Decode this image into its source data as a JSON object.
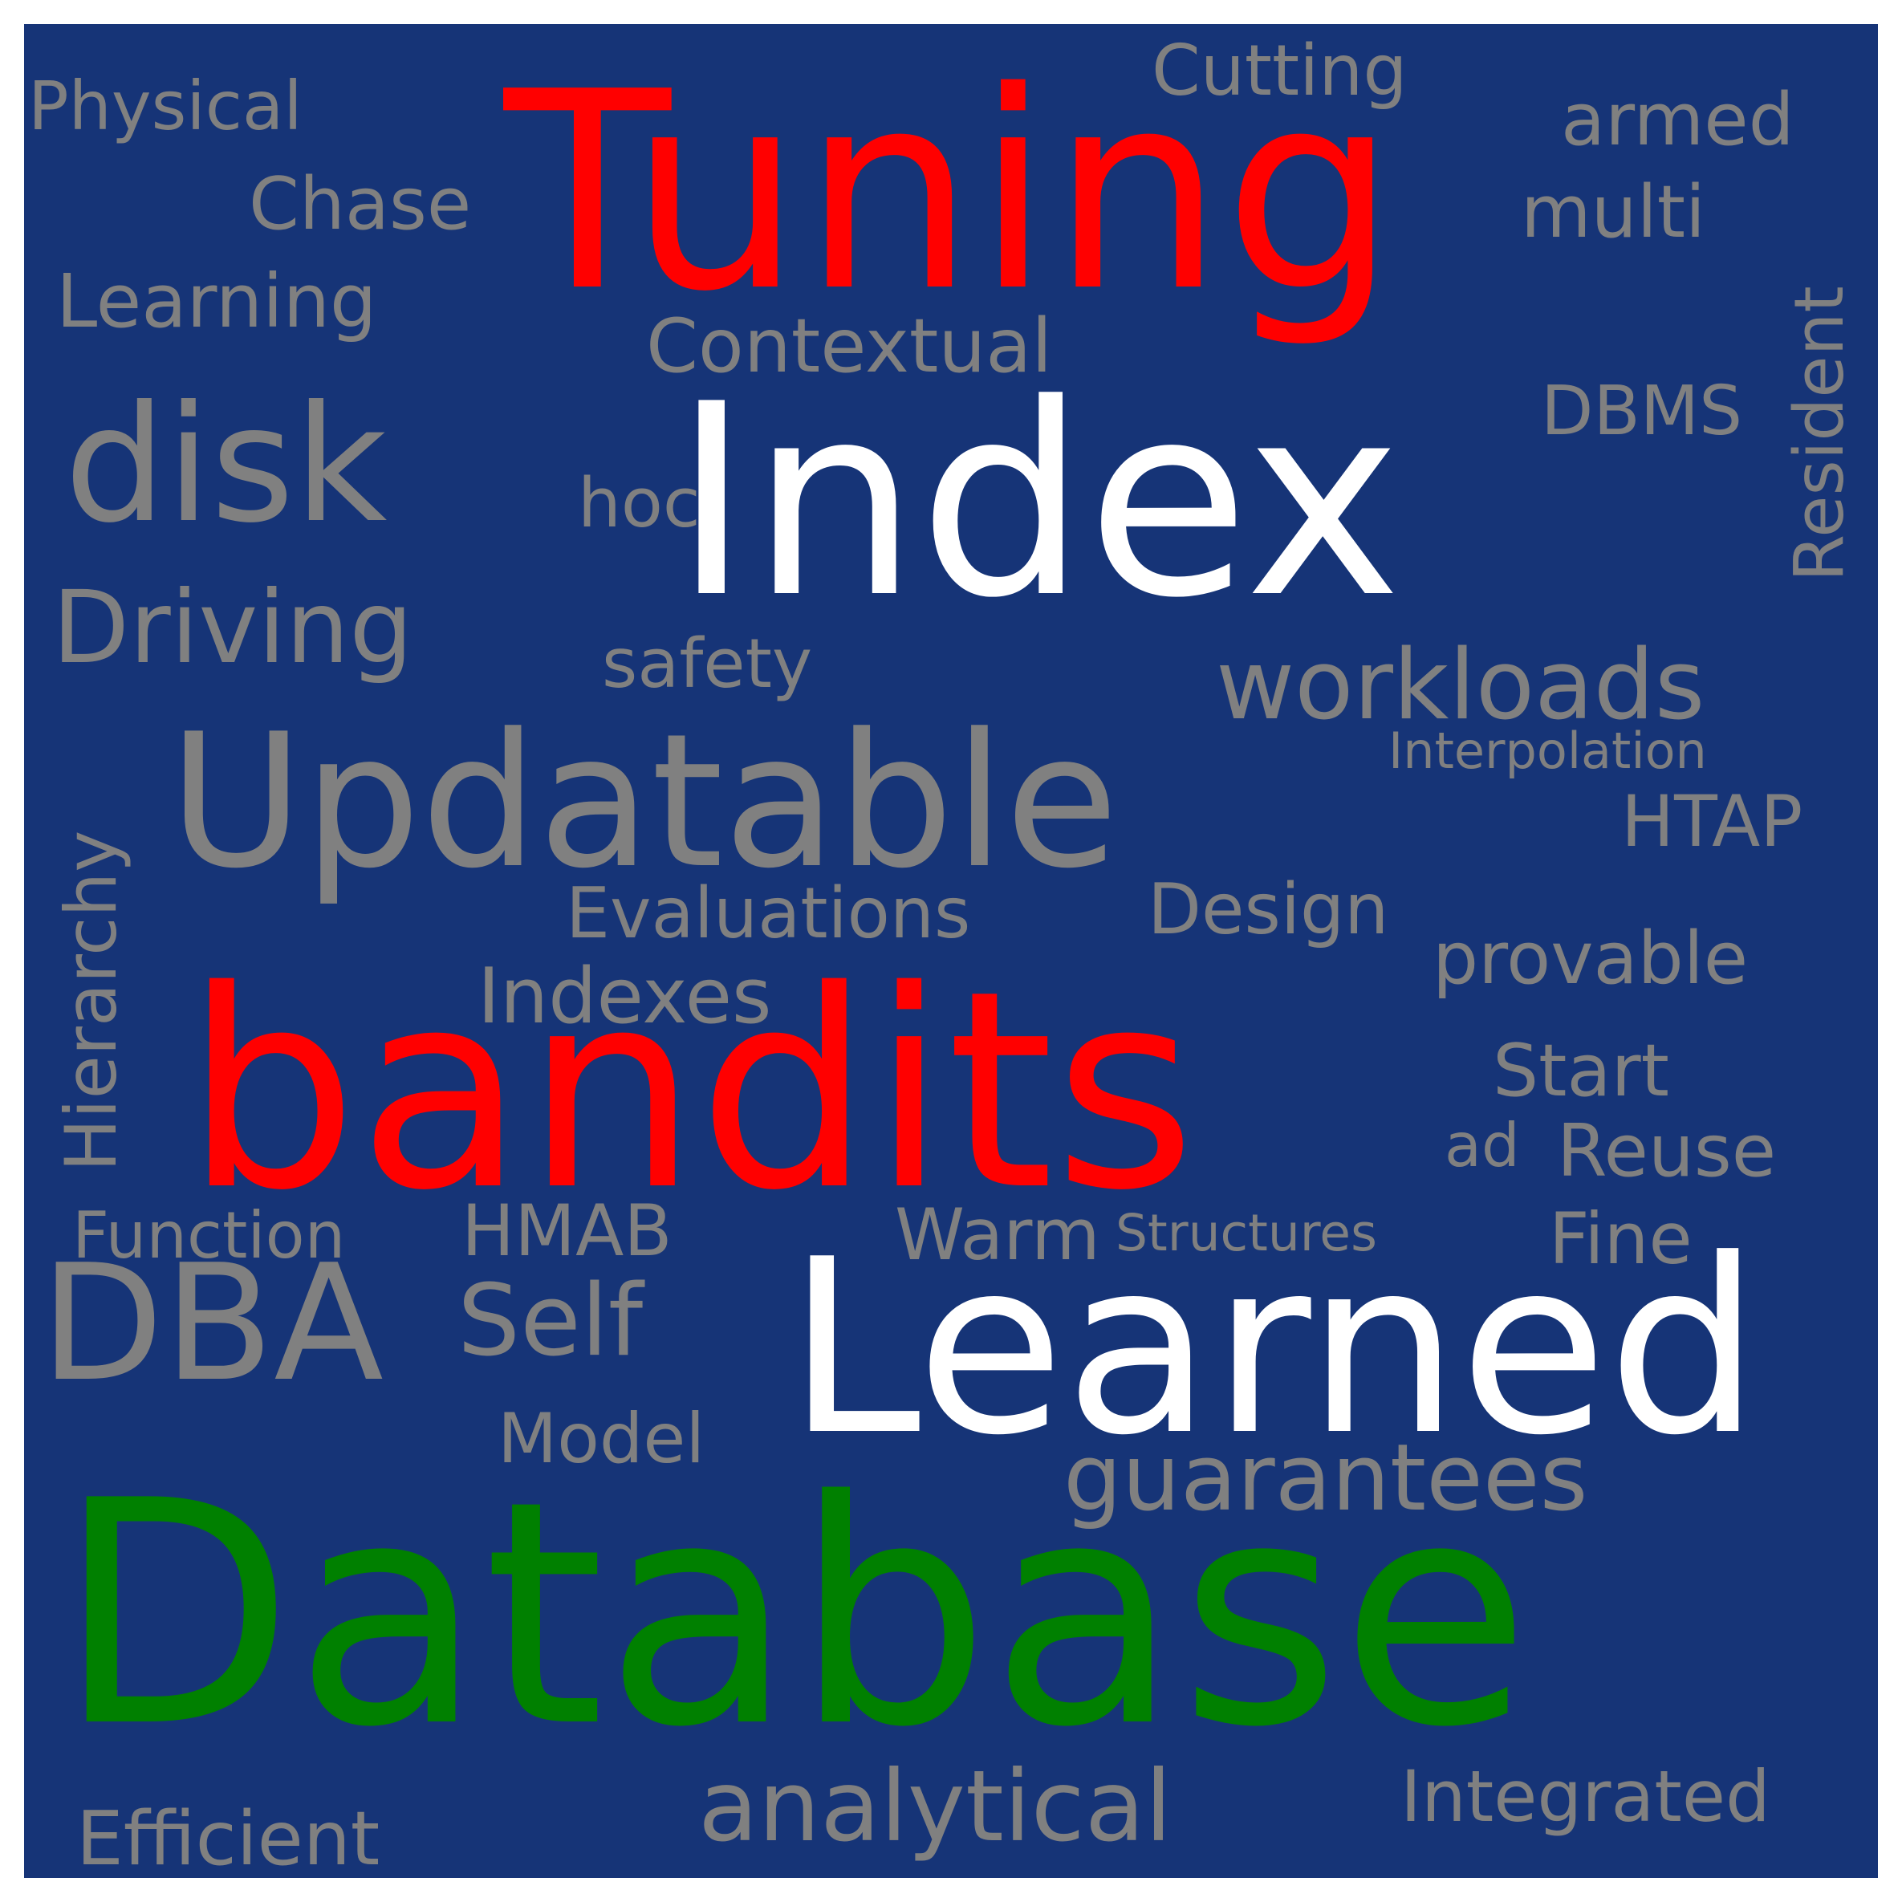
{
  "word_cloud": {
    "colors": {
      "background": "#163477",
      "frame": "#ffffff",
      "primary": "#ff0000",
      "secondary": "#ffffff",
      "highlight": "#008000",
      "default": "#808080"
    },
    "words": {
      "tuning": "Tuning",
      "index": "Index",
      "database": "Database",
      "bandits": "bandits",
      "learned": "Learned",
      "updatable": "Updatable",
      "disk": "disk",
      "dba": "DBA",
      "physical": "Physical",
      "cutting": "Cutting",
      "armed": "armed",
      "chase": "Chase",
      "multi": "multi",
      "learning": "Learning",
      "contextual": "Contextual",
      "resident": "Resident",
      "dbms": "DBMS",
      "hoc": "hoc",
      "driving": "Driving",
      "safety": "safety",
      "workloads": "workloads",
      "hierarchy": "Hierarchy",
      "interpolation": "Interpolation",
      "htap": "HTAP",
      "evaluations": "Evaluations",
      "design": "Design",
      "provable": "provable",
      "indexes": "Indexes",
      "start": "Start",
      "ad": "ad",
      "reuse": "Reuse",
      "function": "Function",
      "hmab": "HMAB",
      "warm": "Warm",
      "structures": "Structures",
      "fine": "Fine",
      "self": "Self",
      "model": "Model",
      "guarantees": "guarantees",
      "analytical": "analytical",
      "integrated": "Integrated",
      "efficient": "Efficient"
    }
  }
}
